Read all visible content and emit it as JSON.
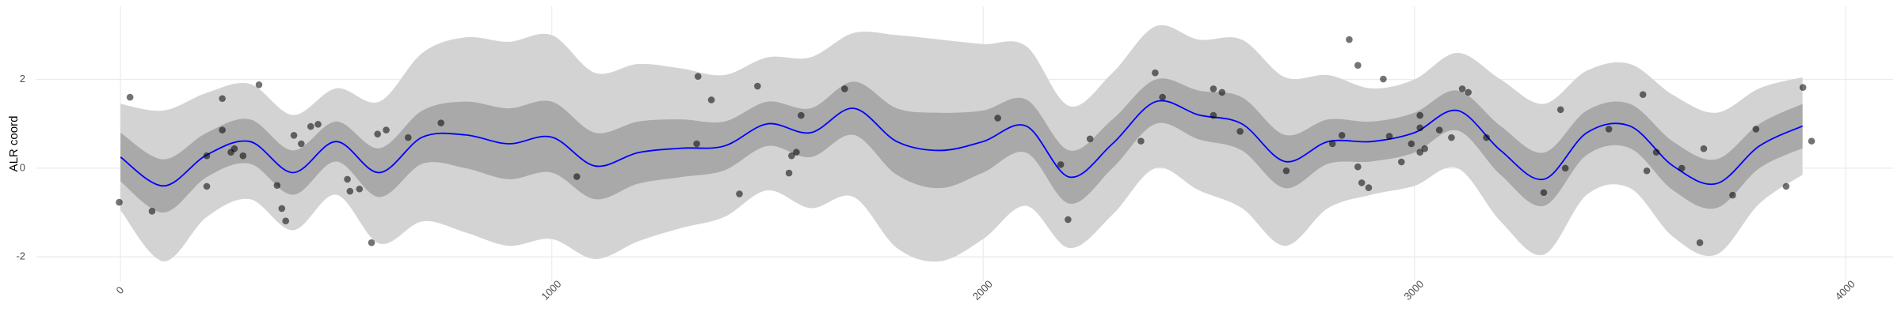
{
  "chart_data": {
    "type": "line",
    "y_label": "ALR coord",
    "xlim": [
      -195,
      4110
    ],
    "ylim": [
      -2.55,
      3.65
    ],
    "xticks": [
      0,
      1000,
      2000,
      3000,
      4000
    ],
    "yticks": [
      -2,
      0,
      2
    ],
    "grid": true,
    "x": [
      0,
      100,
      200,
      300,
      400,
      500,
      600,
      700,
      800,
      900,
      1000,
      1100,
      1200,
      1300,
      1400,
      1500,
      1600,
      1700,
      1800,
      1900,
      2000,
      2100,
      2200,
      2300,
      2400,
      2500,
      2600,
      2700,
      2800,
      2900,
      3000,
      3100,
      3200,
      3300,
      3400,
      3500,
      3600,
      3700,
      3800,
      3900
    ],
    "outer_band": {
      "color": "#d3d3d3",
      "lower": [
        -0.95,
        -2.1,
        -1.1,
        -0.7,
        -1.4,
        -0.6,
        -1.7,
        -1.2,
        -1.45,
        -1.75,
        -1.6,
        -2.05,
        -1.65,
        -1.35,
        -1.1,
        -0.5,
        -0.9,
        -0.65,
        -1.8,
        -2.1,
        -1.6,
        -0.85,
        -1.8,
        -1.05,
        0,
        -0.5,
        -0.9,
        -1.75,
        -0.9,
        -0.6,
        -0.4,
        0,
        -1.2,
        -1.95,
        -0.6,
        -0.45,
        -1.55,
        -1.95,
        -0.8,
        -0.15
      ],
      "upper": [
        1.45,
        1.3,
        1.7,
        1.9,
        1.2,
        1.8,
        1.5,
        2.6,
        2.95,
        2.85,
        3.0,
        2.15,
        2.35,
        2.25,
        2.1,
        2.5,
        2.5,
        3.05,
        3.0,
        2.9,
        2.8,
        2.75,
        1.4,
        2.15,
        3.2,
        2.9,
        2.9,
        2.05,
        2.1,
        1.8,
        2.0,
        2.6,
        2.0,
        1.45,
        2.2,
        2.35,
        1.65,
        1.25,
        1.8,
        2.05
      ]
    },
    "inner_band": {
      "color": "#a9a9a9",
      "lower": [
        -0.3,
        -1.0,
        -0.2,
        0.1,
        -0.6,
        0.15,
        -0.65,
        0.1,
        0,
        -0.25,
        -0.1,
        -0.7,
        -0.35,
        -0.2,
        -0.05,
        0.5,
        0.25,
        0.75,
        -0.15,
        -0.45,
        -0.1,
        0.35,
        -0.8,
        0,
        1.0,
        0.65,
        0.4,
        -0.45,
        0.1,
        0.15,
        0.35,
        0.85,
        -0.15,
        -0.85,
        0.3,
        0.45,
        -0.5,
        -0.9,
        0,
        0.45
      ],
      "upper": [
        0.8,
        0.2,
        0.8,
        1.1,
        0.4,
        1.05,
        0.45,
        1.3,
        1.5,
        1.35,
        1.5,
        0.8,
        1.05,
        1.1,
        1.05,
        1.5,
        1.35,
        1.95,
        1.35,
        1.25,
        1.3,
        1.55,
        0.4,
        1.1,
        2.0,
        1.75,
        1.6,
        0.75,
        1.1,
        1.05,
        1.25,
        1.75,
        0.95,
        0.35,
        1.3,
        1.45,
        0.6,
        0.2,
        1.0,
        1.45
      ]
    },
    "mean": {
      "color": "#0000ff",
      "values": [
        0.25,
        -0.4,
        0.3,
        0.6,
        -0.1,
        0.6,
        -0.1,
        0.7,
        0.75,
        0.55,
        0.7,
        0.05,
        0.35,
        0.45,
        0.5,
        1.0,
        0.8,
        1.35,
        0.6,
        0.4,
        0.6,
        0.95,
        -0.2,
        0.55,
        1.5,
        1.2,
        1.0,
        0.15,
        0.6,
        0.6,
        0.8,
        1.3,
        0.4,
        -0.25,
        0.8,
        0.95,
        0.05,
        -0.35,
        0.5,
        0.95
      ]
    },
    "points": {
      "color": "#000000",
      "x": [
        -3,
        22,
        73,
        200,
        200,
        236,
        236,
        256,
        264,
        284,
        321,
        363,
        374,
        383,
        402,
        419,
        441,
        458,
        526,
        532,
        554,
        582,
        596,
        616,
        667,
        743,
        1058,
        1336,
        1339,
        1370,
        1435,
        1477,
        1550,
        1556,
        1567,
        1578,
        1679,
        2034,
        2180,
        2197,
        2248,
        2366,
        2399,
        2416,
        2534,
        2554,
        2534,
        2596,
        2703,
        2810,
        2832,
        2849,
        2869,
        2869,
        2878,
        2894,
        2928,
        2942,
        2970,
        2993,
        3013,
        3013,
        3013,
        3024,
        3058,
        3086,
        3111,
        3125,
        3167,
        3300,
        3339,
        3350,
        3451,
        3530,
        3539,
        3561,
        3620,
        3662,
        3671,
        3738,
        3792,
        3862,
        3901,
        3921
      ],
      "y": [
        -0.77,
        1.6,
        -0.97,
        0.28,
        -0.41,
        1.57,
        0.86,
        0.36,
        0.44,
        0.28,
        1.88,
        -0.39,
        -0.91,
        -1.19,
        0.74,
        0.55,
        0.94,
        0.99,
        -0.25,
        -0.52,
        -0.47,
        -1.68,
        0.77,
        0.86,
        0.69,
        1.02,
        -0.19,
        0.55,
        2.07,
        1.54,
        -0.58,
        1.85,
        -0.11,
        0.28,
        0.36,
        1.19,
        1.79,
        1.13,
        0.08,
        -1.16,
        0.66,
        0.61,
        2.15,
        1.6,
        1.79,
        1.71,
        1.19,
        0.83,
        -0.06,
        0.55,
        0.74,
        2.9,
        2.32,
        0.03,
        -0.33,
        -0.44,
        2.01,
        0.72,
        0.14,
        0.55,
        1.19,
        0.91,
        0.36,
        0.44,
        0.86,
        0.69,
        1.79,
        1.71,
        0.69,
        -0.55,
        1.32,
        0,
        0.88,
        1.66,
        -0.06,
        0.36,
        0,
        -1.68,
        0.44,
        -0.61,
        0.88,
        -0.41,
        1.82,
        0.61
      ]
    }
  }
}
